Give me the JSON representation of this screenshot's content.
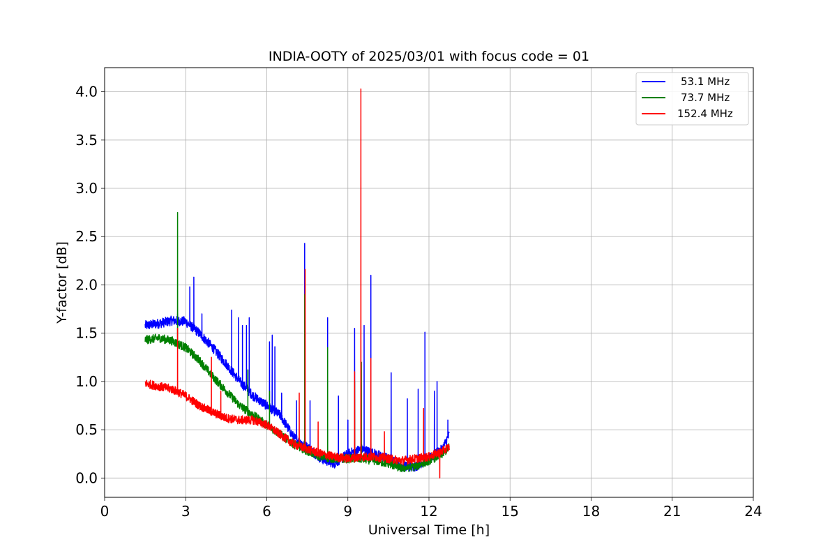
{
  "chart_data": {
    "type": "line",
    "title": "INDIA-OOTY of 2025/03/01 with focus code = 01",
    "xlabel": "Universal Time [h]",
    "ylabel": "Y-factor [dB]",
    "xlim": [
      0,
      24
    ],
    "ylim": [
      -0.2,
      4.25
    ],
    "xticks": [
      0,
      3,
      6,
      9,
      12,
      15,
      18,
      21,
      24
    ],
    "yticks": [
      0.0,
      0.5,
      1.0,
      1.5,
      2.0,
      2.5,
      3.0,
      3.5,
      4.0
    ],
    "xtick_labels": [
      "0",
      "3",
      "6",
      "9",
      "12",
      "15",
      "18",
      "21",
      "24"
    ],
    "ytick_labels": [
      "0.0",
      "0.5",
      "1.0",
      "1.5",
      "2.0",
      "2.5",
      "3.0",
      "3.5",
      "4.0"
    ],
    "grid": true,
    "legend_position": "top-right",
    "series": [
      {
        "name": "53.1 MHz",
        "color": "#0000ff",
        "noise": 0.05,
        "x": [
          1.5,
          2.0,
          2.5,
          3.0,
          3.5,
          4.0,
          4.5,
          5.0,
          5.5,
          6.0,
          6.5,
          7.0,
          7.5,
          8.0,
          8.5,
          9.0,
          9.5,
          10.0,
          10.5,
          11.0,
          11.5,
          12.0,
          12.5,
          12.75
        ],
        "y": [
          1.58,
          1.6,
          1.63,
          1.62,
          1.5,
          1.35,
          1.18,
          1.0,
          0.85,
          0.75,
          0.65,
          0.42,
          0.32,
          0.2,
          0.15,
          0.25,
          0.3,
          0.25,
          0.2,
          0.12,
          0.12,
          0.2,
          0.3,
          0.45
        ],
        "spikes": [
          {
            "x": 2.7,
            "y": 1.7
          },
          {
            "x": 3.15,
            "y": 1.98
          },
          {
            "x": 3.3,
            "y": 2.08
          },
          {
            "x": 3.6,
            "y": 1.7
          },
          {
            "x": 4.7,
            "y": 1.74
          },
          {
            "x": 4.95,
            "y": 1.66
          },
          {
            "x": 5.1,
            "y": 1.58
          },
          {
            "x": 5.35,
            "y": 1.66
          },
          {
            "x": 5.25,
            "y": 1.58
          },
          {
            "x": 6.1,
            "y": 1.41
          },
          {
            "x": 6.2,
            "y": 1.48
          },
          {
            "x": 6.3,
            "y": 1.36
          },
          {
            "x": 6.55,
            "y": 0.88
          },
          {
            "x": 7.1,
            "y": 0.8
          },
          {
            "x": 7.4,
            "y": 2.43
          },
          {
            "x": 7.6,
            "y": 0.8
          },
          {
            "x": 8.25,
            "y": 1.66
          },
          {
            "x": 8.65,
            "y": 0.85
          },
          {
            "x": 9.0,
            "y": 0.6
          },
          {
            "x": 9.25,
            "y": 1.55
          },
          {
            "x": 9.6,
            "y": 1.58
          },
          {
            "x": 9.85,
            "y": 2.1
          },
          {
            "x": 10.6,
            "y": 1.09
          },
          {
            "x": 11.2,
            "y": 0.82
          },
          {
            "x": 11.6,
            "y": 0.92
          },
          {
            "x": 11.85,
            "y": 1.51
          },
          {
            "x": 12.2,
            "y": 0.9
          },
          {
            "x": 12.3,
            "y": 1.0
          },
          {
            "x": 12.7,
            "y": 0.6
          }
        ]
      },
      {
        "name": "73.7 MHz",
        "color": "#008000",
        "noise": 0.045,
        "x": [
          1.5,
          2.0,
          2.5,
          3.0,
          3.5,
          4.0,
          4.5,
          5.0,
          5.5,
          6.0,
          6.5,
          7.0,
          7.5,
          8.0,
          8.5,
          9.0,
          9.5,
          10.0,
          10.5,
          11.0,
          11.5,
          12.0,
          12.5,
          12.75
        ],
        "y": [
          1.43,
          1.45,
          1.42,
          1.35,
          1.22,
          1.05,
          0.9,
          0.75,
          0.65,
          0.55,
          0.45,
          0.35,
          0.28,
          0.22,
          0.2,
          0.2,
          0.2,
          0.18,
          0.15,
          0.1,
          0.12,
          0.18,
          0.25,
          0.32
        ],
        "spikes": [
          {
            "x": 2.7,
            "y": 2.75
          },
          {
            "x": 5.3,
            "y": 1.12
          },
          {
            "x": 6.1,
            "y": 0.9
          },
          {
            "x": 7.4,
            "y": 1.9
          },
          {
            "x": 8.25,
            "y": 1.35
          },
          {
            "x": 9.25,
            "y": 1.0
          },
          {
            "x": 9.5,
            "y": 1.2
          }
        ]
      },
      {
        "name": "152.4 MHz",
        "color": "#ff0000",
        "noise": 0.045,
        "x": [
          1.5,
          2.0,
          2.5,
          3.0,
          3.5,
          4.0,
          4.5,
          5.0,
          5.5,
          6.0,
          6.5,
          7.0,
          7.5,
          8.0,
          8.5,
          9.0,
          9.5,
          10.0,
          10.5,
          11.0,
          11.5,
          12.0,
          12.5,
          12.75
        ],
        "y": [
          0.98,
          0.95,
          0.92,
          0.85,
          0.75,
          0.68,
          0.62,
          0.6,
          0.6,
          0.55,
          0.45,
          0.35,
          0.3,
          0.25,
          0.22,
          0.2,
          0.22,
          0.22,
          0.2,
          0.18,
          0.2,
          0.22,
          0.28,
          0.32
        ],
        "spikes": [
          {
            "x": 2.7,
            "y": 1.55
          },
          {
            "x": 3.95,
            "y": 1.25
          },
          {
            "x": 4.3,
            "y": 0.9
          },
          {
            "x": 7.2,
            "y": 0.88
          },
          {
            "x": 7.42,
            "y": 2.16
          },
          {
            "x": 7.9,
            "y": 0.58
          },
          {
            "x": 9.25,
            "y": 1.1
          },
          {
            "x": 9.48,
            "y": 4.03
          },
          {
            "x": 9.85,
            "y": 1.24
          },
          {
            "x": 10.35,
            "y": 0.48
          },
          {
            "x": 11.8,
            "y": 0.72
          },
          {
            "x": 12.4,
            "y": 0.0
          }
        ]
      }
    ]
  }
}
